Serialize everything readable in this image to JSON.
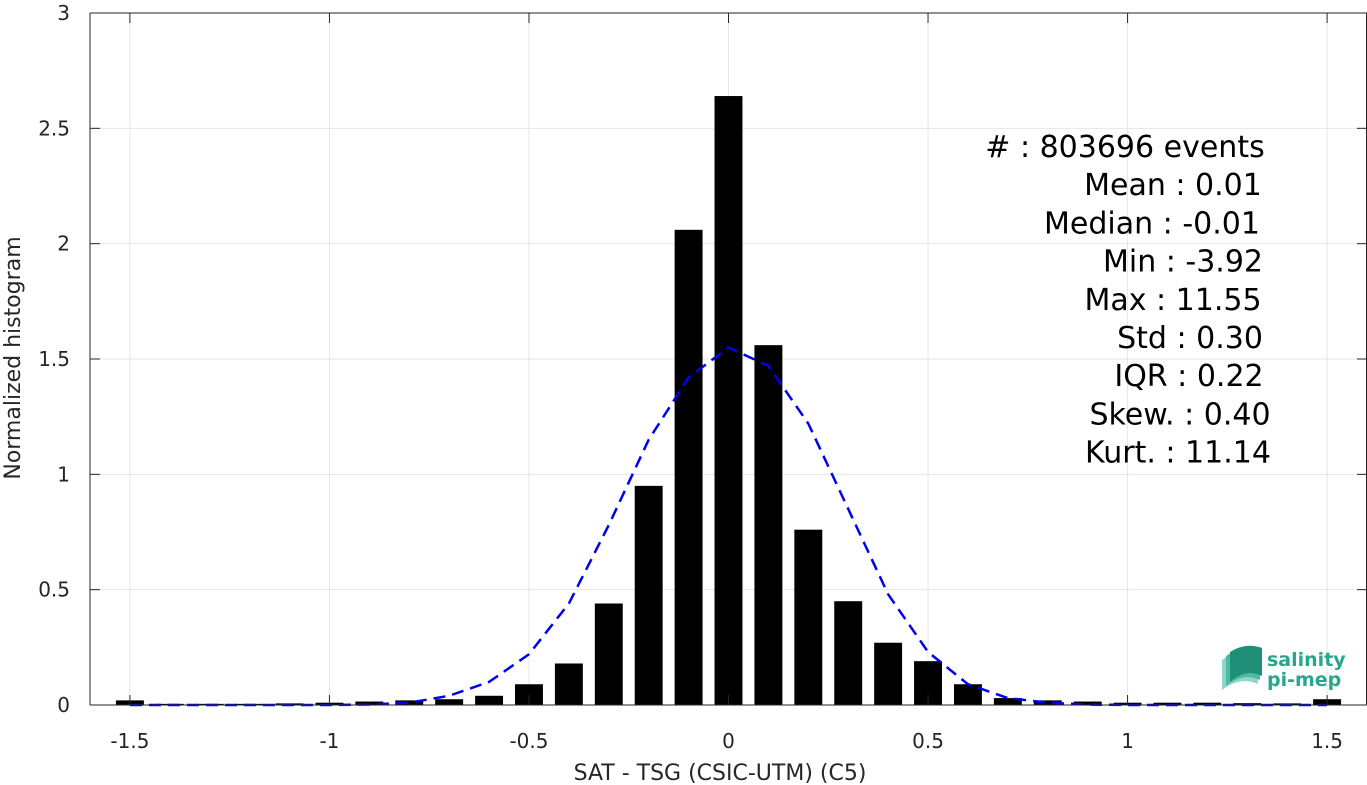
{
  "chart_data": {
    "type": "bar",
    "title": "",
    "xlabel": "SAT - TSG (CSIC-UTM) (C5)",
    "ylabel": "Normalized histogram",
    "xlim": [
      -1.6,
      1.6
    ],
    "ylim": [
      0,
      3
    ],
    "grid": true,
    "x_ticks": [
      -1.5,
      -1,
      -0.5,
      0,
      0.5,
      1,
      1.5
    ],
    "x_tick_labels": [
      "-1.5",
      "-1",
      "-0.5",
      "0",
      "0.5",
      "1",
      "1.5"
    ],
    "y_ticks": [
      0,
      0.5,
      1,
      1.5,
      2,
      2.5,
      3
    ],
    "y_tick_labels": [
      "0",
      "0.5",
      "1",
      "1.5",
      "2",
      "2.5",
      "3"
    ],
    "bar_width": 0.07,
    "bar_color": "#000000",
    "series": [
      {
        "type": "bar",
        "x": [
          -1.5,
          -1.4,
          -1.3,
          -1.2,
          -1.1,
          -1.0,
          -0.9,
          -0.8,
          -0.7,
          -0.6,
          -0.5,
          -0.4,
          -0.3,
          -0.2,
          -0.1,
          0.0,
          0.1,
          0.2,
          0.3,
          0.4,
          0.5,
          0.6,
          0.7,
          0.8,
          0.9,
          1.0,
          1.1,
          1.2,
          1.3,
          1.4,
          1.5
        ],
        "values": [
          0.02,
          0.005,
          0.005,
          0.005,
          0.007,
          0.01,
          0.015,
          0.02,
          0.025,
          0.04,
          0.09,
          0.18,
          0.44,
          0.95,
          2.06,
          2.64,
          1.56,
          0.76,
          0.45,
          0.27,
          0.19,
          0.09,
          0.03,
          0.02,
          0.015,
          0.01,
          0.01,
          0.01,
          0.008,
          0.007,
          0.025
        ]
      },
      {
        "type": "line",
        "style": "dashed",
        "color": "#0000ee",
        "x": [
          -1.5,
          -1.4,
          -1.3,
          -1.2,
          -1.1,
          -1.0,
          -0.9,
          -0.8,
          -0.7,
          -0.6,
          -0.5,
          -0.4,
          -0.3,
          -0.2,
          -0.1,
          0.0,
          0.1,
          0.2,
          0.3,
          0.4,
          0.5,
          0.6,
          0.7,
          0.8,
          0.9,
          1.0,
          1.1,
          1.2,
          1.3,
          1.4,
          1.5
        ],
        "values": [
          0.0,
          0.0,
          0.0,
          0.0,
          0.0,
          0.0,
          0.002,
          0.01,
          0.04,
          0.1,
          0.22,
          0.44,
          0.78,
          1.15,
          1.42,
          1.55,
          1.47,
          1.22,
          0.85,
          0.48,
          0.23,
          0.09,
          0.03,
          0.01,
          0.002,
          0.0,
          0.0,
          0.0,
          0.0,
          0.0,
          0.0
        ]
      }
    ],
    "annotations": [
      "#  : 803696 events",
      "Mean : 0.01",
      "Median : -0.01",
      "Min : -3.92",
      "Max : 11.55",
      "Std : 0.30",
      "IQR : 0.22",
      "Skew. : 0.40",
      "Kurt. : 11.14"
    ]
  },
  "logo": {
    "line1": "salinity",
    "line2": "pi-mep",
    "color": "#2aa58e"
  },
  "colors": {
    "axis": "#262626",
    "grid": "#e6e6e6",
    "bars": "#000000",
    "fit_line": "#0000ee"
  }
}
